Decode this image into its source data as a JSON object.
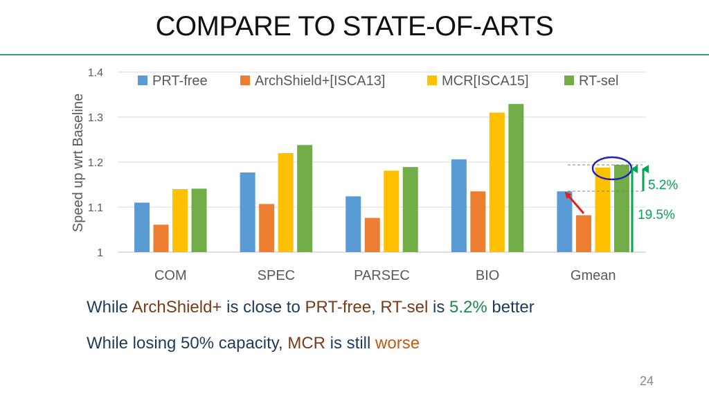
{
  "slide": {
    "title": "COMPARE TO STATE-OF-ARTS",
    "page_number": "24",
    "caption1": {
      "p1": "While ",
      "p2": "ArchShield+",
      "p3": " is close to ",
      "p4": "PRT-free",
      "p5": ", ",
      "p6": "RT-sel",
      "p7": " is ",
      "p8": "5.2%",
      "p9": " better"
    },
    "caption2": {
      "p1": "While losing 50% capacity, ",
      "p2": "MCR",
      "p3": " is still ",
      "p4": "worse"
    }
  },
  "chart_data": {
    "type": "bar",
    "ylabel": "Speed up wrt Baseline",
    "ylim": [
      1,
      1.4
    ],
    "yticks": [
      "1",
      "1.1",
      "1.2",
      "1.3",
      "1.4"
    ],
    "grid": true,
    "legend_position": "top",
    "categories": [
      "COM",
      "SPEC",
      "PARSEC",
      "BIO",
      "Gmean"
    ],
    "series": [
      {
        "name": "PRT-free",
        "color": "#5b9bd5",
        "values": [
          1.11,
          1.177,
          1.124,
          1.206,
          1.135
        ]
      },
      {
        "name": "ArchShield+[ISCA13]",
        "color": "#ed7d31",
        "values": [
          1.061,
          1.107,
          1.076,
          1.135,
          1.082
        ]
      },
      {
        "name": "MCR[ISCA15]",
        "color": "#ffc000",
        "values": [
          1.14,
          1.22,
          1.181,
          1.31,
          1.188
        ]
      },
      {
        "name": "RT-sel",
        "color": "#70ad47",
        "values": [
          1.141,
          1.238,
          1.189,
          1.329,
          1.194
        ]
      }
    ],
    "annotations": [
      {
        "text": "5.2%",
        "color": "#00a650"
      },
      {
        "text": "19.5%",
        "color": "#00a650"
      }
    ]
  }
}
